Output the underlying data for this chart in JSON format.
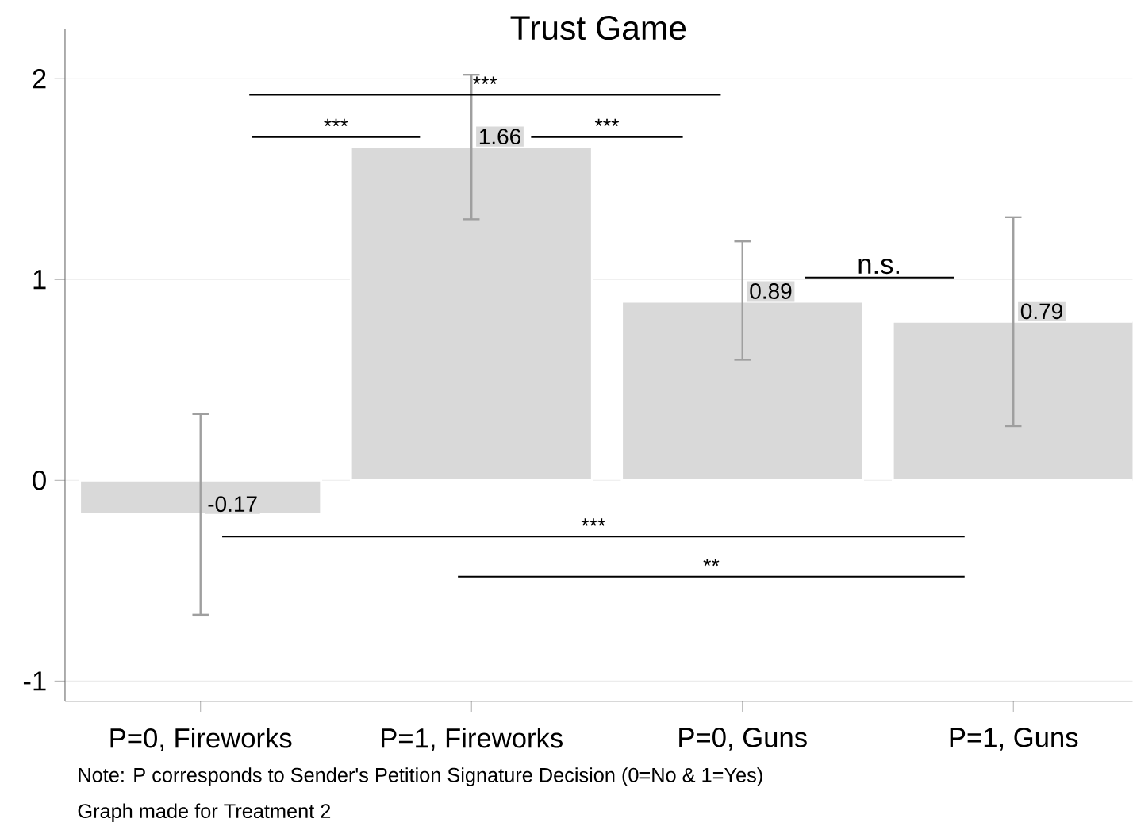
{
  "chart_data": {
    "type": "bar",
    "title": "Trust Game",
    "categories": [
      "P=0, Fireworks",
      "P=1, Fireworks",
      "P=0, Guns",
      "P=1, Guns"
    ],
    "values": [
      -0.17,
      1.66,
      0.89,
      0.79
    ],
    "errors": [
      [
        -0.67,
        0.33
      ],
      [
        1.3,
        2.02
      ],
      [
        0.6,
        1.19
      ],
      [
        0.27,
        1.31
      ]
    ],
    "color": "#d9d9d9",
    "data_labels": true,
    "ylim": [
      -1.1,
      2.25
    ],
    "yticks": [
      -1,
      0,
      1,
      2
    ],
    "grid": "y",
    "annotations": [
      "***",
      "***",
      "***",
      "n.s.",
      "***",
      "**",
      "Note: P corresponds to Sender's Petition Signature Decision (0=No & 1=Yes)",
      "Graph made for Treatment 2"
    ]
  }
}
